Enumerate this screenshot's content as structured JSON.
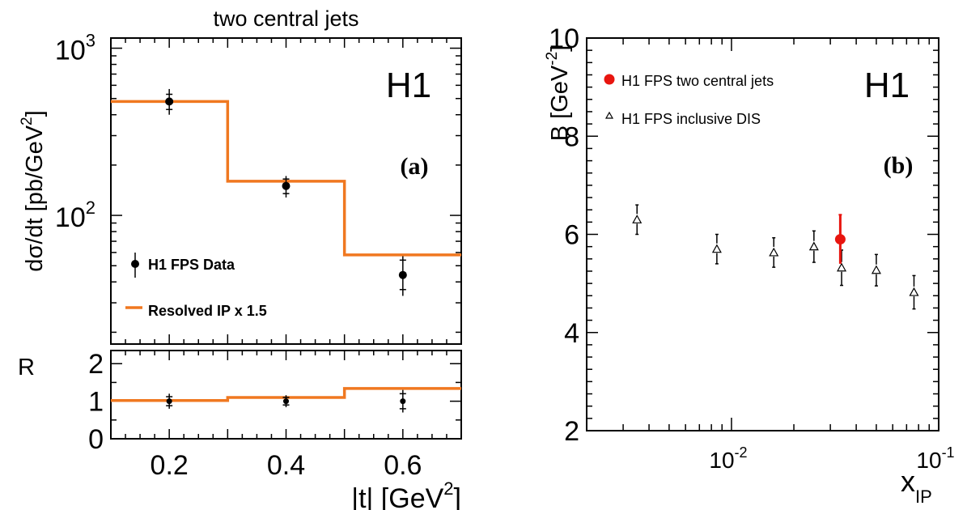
{
  "colors": {
    "data": "#000000",
    "model": "#f07820",
    "red": "#e8150f"
  },
  "chart_data": [
    {
      "id": "a",
      "type": "line",
      "title": "two central jets",
      "ylabel_text": "dσ/dt [pb/GeV",
      "ylabel_sup": "2",
      "ylabel_close": "]",
      "xlabel_text": "|t| [GeV",
      "xlabel_sup": "2",
      "xlabel_close": "]",
      "experiment": "H1",
      "panel_label": "(a)",
      "xlim": [
        0.1,
        0.7
      ],
      "ylim": [
        17,
        1150
      ],
      "yscale": "log",
      "x_ticklabels": [
        "0.2",
        "0.4",
        "0.6"
      ],
      "y_ticklabels": [
        {
          "base": "10",
          "exp": "2",
          "value": 100
        },
        {
          "base": "10",
          "exp": "3",
          "value": 1000
        }
      ],
      "legend": [
        {
          "label": "H1 FPS Data",
          "marker": "point-errorbar"
        },
        {
          "label": "Resolved IP x 1.5",
          "marker": "line"
        }
      ],
      "series": [
        {
          "name": "H1 FPS Data",
          "points": [
            {
              "x": 0.2,
              "y": 480,
              "inner": [
                430,
                530
              ],
              "outer": [
                400,
                570
              ]
            },
            {
              "x": 0.4,
              "y": 150,
              "inner": [
                135,
                165
              ],
              "outer": [
                128,
                172
              ]
            },
            {
              "x": 0.6,
              "y": 44,
              "inner": [
                36,
                54
              ],
              "outer": [
                33,
                57
              ]
            }
          ]
        },
        {
          "name": "Resolved IP x 1.5",
          "steps": [
            {
              "x0": 0.1,
              "x1": 0.3,
              "y": 480
            },
            {
              "x0": 0.3,
              "x1": 0.5,
              "y": 160
            },
            {
              "x0": 0.5,
              "x1": 0.7,
              "y": 58
            }
          ]
        }
      ]
    },
    {
      "id": "a-ratio",
      "type": "line",
      "ylabel": "R",
      "xlim": [
        0.1,
        0.7
      ],
      "ylim": [
        0,
        2.35
      ],
      "y_ticklabels": [
        "0",
        "1",
        "2"
      ],
      "series": [
        {
          "name": "Ratio",
          "points": [
            {
              "x": 0.2,
              "y": 1.0,
              "inner": [
                0.88,
                1.12
              ],
              "outer": [
                0.8,
                1.2
              ]
            },
            {
              "x": 0.4,
              "y": 1.0,
              "inner": [
                0.9,
                1.1
              ],
              "outer": [
                0.84,
                1.16
              ]
            },
            {
              "x": 0.6,
              "y": 1.0,
              "inner": [
                0.8,
                1.2
              ],
              "outer": [
                0.7,
                1.3
              ]
            }
          ]
        },
        {
          "name": "Model ratio",
          "steps": [
            {
              "x0": 0.1,
              "x1": 0.3,
              "y": 1.02
            },
            {
              "x0": 0.3,
              "x1": 0.5,
              "y": 1.1
            },
            {
              "x0": 0.5,
              "x1": 0.7,
              "y": 1.34
            }
          ]
        }
      ]
    },
    {
      "id": "b",
      "type": "scatter",
      "ylabel_text": "B [GeV",
      "ylabel_sup": "-2",
      "ylabel_close": "]",
      "xlabel_base": "x",
      "xlabel_sub": "IP",
      "experiment": "H1",
      "panel_label": "(b)",
      "xscale": "log",
      "xlim": [
        0.002,
        0.1
      ],
      "ylim": [
        2,
        10
      ],
      "y_ticklabels": [
        "2",
        "4",
        "6",
        "8",
        "10"
      ],
      "x_ticklabels": [
        {
          "base": "10",
          "exp": "-2",
          "value": 0.01
        },
        {
          "base": "10",
          "exp": "-1",
          "value": 0.1
        }
      ],
      "legend": [
        {
          "label": "H1 FPS two central jets",
          "marker": "filled-circle-red"
        },
        {
          "label": "H1 FPS inclusive DIS",
          "marker": "open-triangle"
        }
      ],
      "series": [
        {
          "name": "H1 FPS two central jets",
          "points": [
            {
              "x": 0.0335,
              "y": 5.9,
              "inner": [
                5.4,
                6.4
              ],
              "outer": [
                5.4,
                6.4
              ]
            }
          ]
        },
        {
          "name": "H1 FPS inclusive DIS",
          "points": [
            {
              "x": 0.0035,
              "y": 6.3,
              "err": 0.3
            },
            {
              "x": 0.0085,
              "y": 5.7,
              "err": 0.3
            },
            {
              "x": 0.016,
              "y": 5.63,
              "err": 0.3
            },
            {
              "x": 0.025,
              "y": 5.75,
              "err": 0.32
            },
            {
              "x": 0.034,
              "y": 5.32,
              "err": 0.36
            },
            {
              "x": 0.05,
              "y": 5.27,
              "err": 0.32
            },
            {
              "x": 0.076,
              "y": 4.82,
              "err": 0.34
            }
          ]
        }
      ]
    }
  ]
}
